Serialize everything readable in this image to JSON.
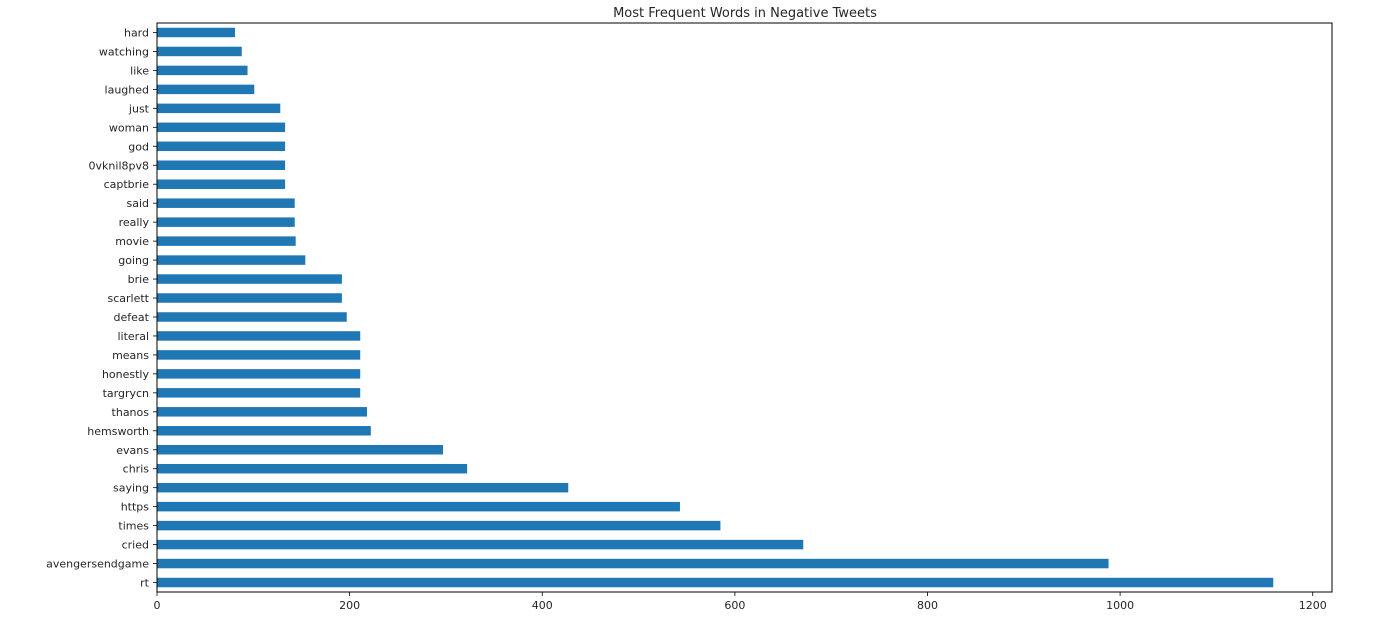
{
  "chart_data": {
    "type": "bar",
    "orientation": "horizontal",
    "title": "Most Frequent Words in Negative Tweets",
    "xlabel": "",
    "ylabel": "",
    "xlim": [
      0,
      1220
    ],
    "xticks": [
      0,
      200,
      400,
      600,
      800,
      1000,
      1200
    ],
    "grid": false,
    "bar_color": "#1f77b4",
    "categories": [
      "rt",
      "avengersendgame",
      "cried",
      "times",
      "https",
      "saying",
      "chris",
      "evans",
      "hemsworth",
      "thanos",
      "targrycn",
      "honestly",
      "means",
      "literal",
      "defeat",
      "scarlett",
      "brie",
      "going",
      "movie",
      "really",
      "said",
      "captbrie",
      "0vknil8pv8",
      "god",
      "woman",
      "just",
      "laughed",
      "like",
      "watching",
      "hard"
    ],
    "values": [
      1159,
      988,
      671,
      585,
      543,
      427,
      322,
      297,
      222,
      218,
      211,
      211,
      211,
      211,
      197,
      192,
      192,
      154,
      144,
      143,
      143,
      133,
      133,
      133,
      133,
      128,
      101,
      94,
      88,
      81
    ]
  }
}
